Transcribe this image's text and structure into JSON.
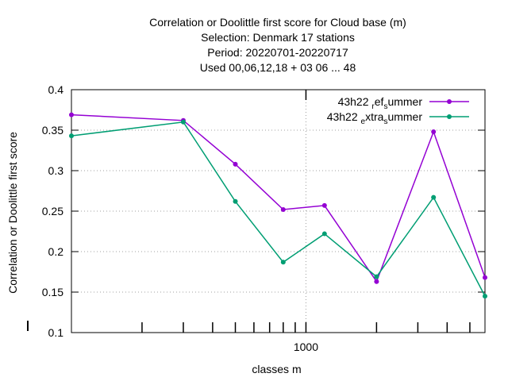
{
  "chart_data": {
    "type": "line",
    "title_lines": [
      "Correlation or Doolittle first score  for Cloud base (m)",
      "Selection: Denmark     17 stations",
      "Period: 20220701-20220717",
      "Used  00,06,12,18  + 03 06 ... 48"
    ],
    "xlabel": "classes m",
    "ylabel": "Correlation or Doolittle first score",
    "x_scale": "log",
    "xlim": [
      100,
      5800
    ],
    "ylim": [
      0.1,
      0.4
    ],
    "y_ticks": [
      0.1,
      0.15,
      0.2,
      0.25,
      0.3,
      0.35,
      0.4
    ],
    "y_tick_labels": [
      "0.1",
      "0.15",
      "0.2",
      "0.25",
      "0.3",
      "0.35",
      "0.4"
    ],
    "x_major_ticks": [
      1000
    ],
    "x_major_tick_labels": [
      "1000"
    ],
    "x_minor_ticks": [
      200,
      300,
      400,
      500,
      600,
      700,
      800,
      900,
      2000,
      3000,
      4000,
      5000
    ],
    "grid": true,
    "legend_position": "top-right",
    "series": [
      {
        "name_main": "43h22",
        "name_sub_parts": [
          [
            "r",
            "sub"
          ],
          [
            "ef",
            "norm"
          ],
          [
            "s",
            "sub"
          ],
          [
            "ummer",
            "norm"
          ]
        ],
        "color": "#9400d3",
        "x": [
          100,
          300,
          500,
          800,
          1200,
          2000,
          3500,
          5800
        ],
        "y": [
          0.369,
          0.362,
          0.308,
          0.252,
          0.257,
          0.163,
          0.348,
          0.168
        ]
      },
      {
        "name_main": "43h22",
        "name_sub_parts": [
          [
            "e",
            "sub"
          ],
          [
            "xtra",
            "norm"
          ],
          [
            "s",
            "sub"
          ],
          [
            "ummer",
            "norm"
          ]
        ],
        "color": "#009e73",
        "x": [
          100,
          300,
          500,
          800,
          1200,
          2000,
          3500,
          5800
        ],
        "y": [
          0.343,
          0.36,
          0.262,
          0.187,
          0.222,
          0.169,
          0.267,
          0.145
        ]
      }
    ]
  }
}
